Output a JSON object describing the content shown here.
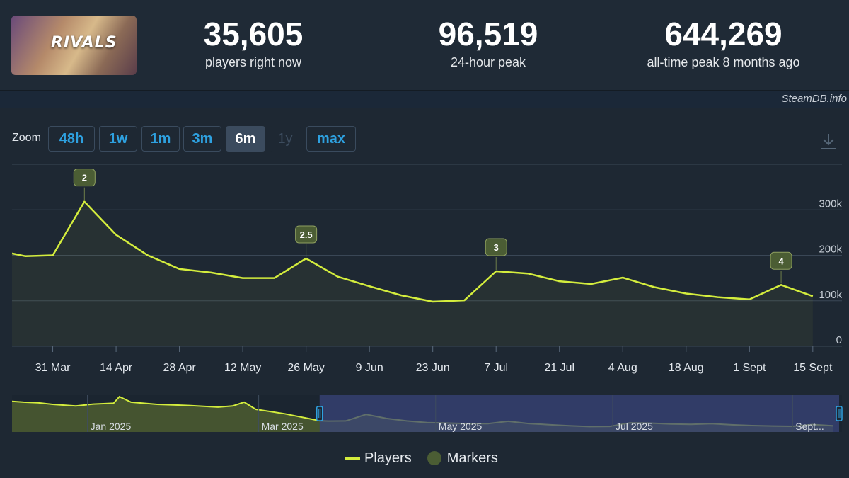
{
  "header": {
    "stats": [
      {
        "value": "35,605",
        "label": "players right now"
      },
      {
        "value": "96,519",
        "label": "24-hour peak"
      },
      {
        "value": "644,269",
        "label": "all-time peak 8 months ago"
      }
    ],
    "thumbnail_text": "RIVALS",
    "source": "SteamDB.info"
  },
  "zoom": {
    "label": "Zoom",
    "buttons": [
      {
        "label": "48h",
        "state": "normal"
      },
      {
        "label": "1w",
        "state": "normal"
      },
      {
        "label": "1m",
        "state": "normal"
      },
      {
        "label": "3m",
        "state": "normal"
      },
      {
        "label": "6m",
        "state": "active"
      },
      {
        "label": "1y",
        "state": "disabled"
      },
      {
        "label": "max",
        "state": "normal"
      }
    ]
  },
  "legend": {
    "players": "Players",
    "markers": "Markers"
  },
  "colors": {
    "line": "#d4ed3d",
    "marker": "#4b5d34",
    "grid": "#3a4756",
    "accent": "#2ea1e0",
    "navigator_window": "#3a4479"
  },
  "chart_data": {
    "type": "line",
    "series": [
      {
        "name": "Players"
      }
    ],
    "x": [
      "2025-03-22",
      "2025-03-25",
      "2025-03-31",
      "2025-04-07",
      "2025-04-14",
      "2025-04-21",
      "2025-04-28",
      "2025-05-05",
      "2025-05-12",
      "2025-05-19",
      "2025-05-26",
      "2025-06-02",
      "2025-06-09",
      "2025-06-16",
      "2025-06-23",
      "2025-06-30",
      "2025-07-07",
      "2025-07-14",
      "2025-07-21",
      "2025-07-28",
      "2025-08-04",
      "2025-08-11",
      "2025-08-18",
      "2025-08-25",
      "2025-09-01",
      "2025-09-08",
      "2025-09-15"
    ],
    "y": [
      204000,
      198000,
      200000,
      318000,
      245000,
      200000,
      170000,
      162000,
      150000,
      150000,
      193000,
      153000,
      132000,
      112000,
      98000,
      101000,
      165000,
      160000,
      143000,
      137000,
      151000,
      130000,
      116000,
      108000,
      103000,
      135000,
      110000
    ],
    "markers": [
      {
        "label": "2",
        "x": "2025-04-07",
        "y": 318000
      },
      {
        "label": "2.5",
        "x": "2025-05-26",
        "y": 193000
      },
      {
        "label": "3",
        "x": "2025-07-07",
        "y": 165000
      },
      {
        "label": "4",
        "x": "2025-09-08",
        "y": 135000
      }
    ],
    "y_ticks": [
      {
        "value": 0,
        "label": "0"
      },
      {
        "value": 100000,
        "label": "100k"
      },
      {
        "value": 200000,
        "label": "200k"
      },
      {
        "value": 300000,
        "label": "300k"
      }
    ],
    "ylim": [
      0,
      400000
    ],
    "x_ticks": [
      {
        "date": "2025-03-31",
        "label": "31 Mar"
      },
      {
        "date": "2025-04-14",
        "label": "14 Apr"
      },
      {
        "date": "2025-04-28",
        "label": "28 Apr"
      },
      {
        "date": "2025-05-12",
        "label": "12 May"
      },
      {
        "date": "2025-05-26",
        "label": "26 May"
      },
      {
        "date": "2025-06-09",
        "label": "9 Jun"
      },
      {
        "date": "2025-06-23",
        "label": "23 Jun"
      },
      {
        "date": "2025-07-07",
        "label": "7 Jul"
      },
      {
        "date": "2025-07-21",
        "label": "21 Jul"
      },
      {
        "date": "2025-08-04",
        "label": "4 Aug"
      },
      {
        "date": "2025-08-18",
        "label": "18 Aug"
      },
      {
        "date": "2025-09-01",
        "label": "1 Sept"
      },
      {
        "date": "2025-09-15",
        "label": "15 Sept"
      }
    ],
    "xlim": [
      "2025-03-22",
      "2025-09-18"
    ],
    "grid": true,
    "legend_position": "bottom-center",
    "navigator": {
      "range": [
        "2024-12-06",
        "2025-09-18"
      ],
      "window": [
        "2025-03-22",
        "2025-09-18"
      ],
      "labels": [
        {
          "date": "2025-01-01",
          "text": "Jan 2025"
        },
        {
          "date": "2025-03-01",
          "text": "Mar 2025"
        },
        {
          "date": "2025-05-01",
          "text": "May 2025"
        },
        {
          "date": "2025-07-01",
          "text": "Jul 2025"
        },
        {
          "date": "2025-09-01",
          "text": "Sept..."
        }
      ]
    }
  }
}
